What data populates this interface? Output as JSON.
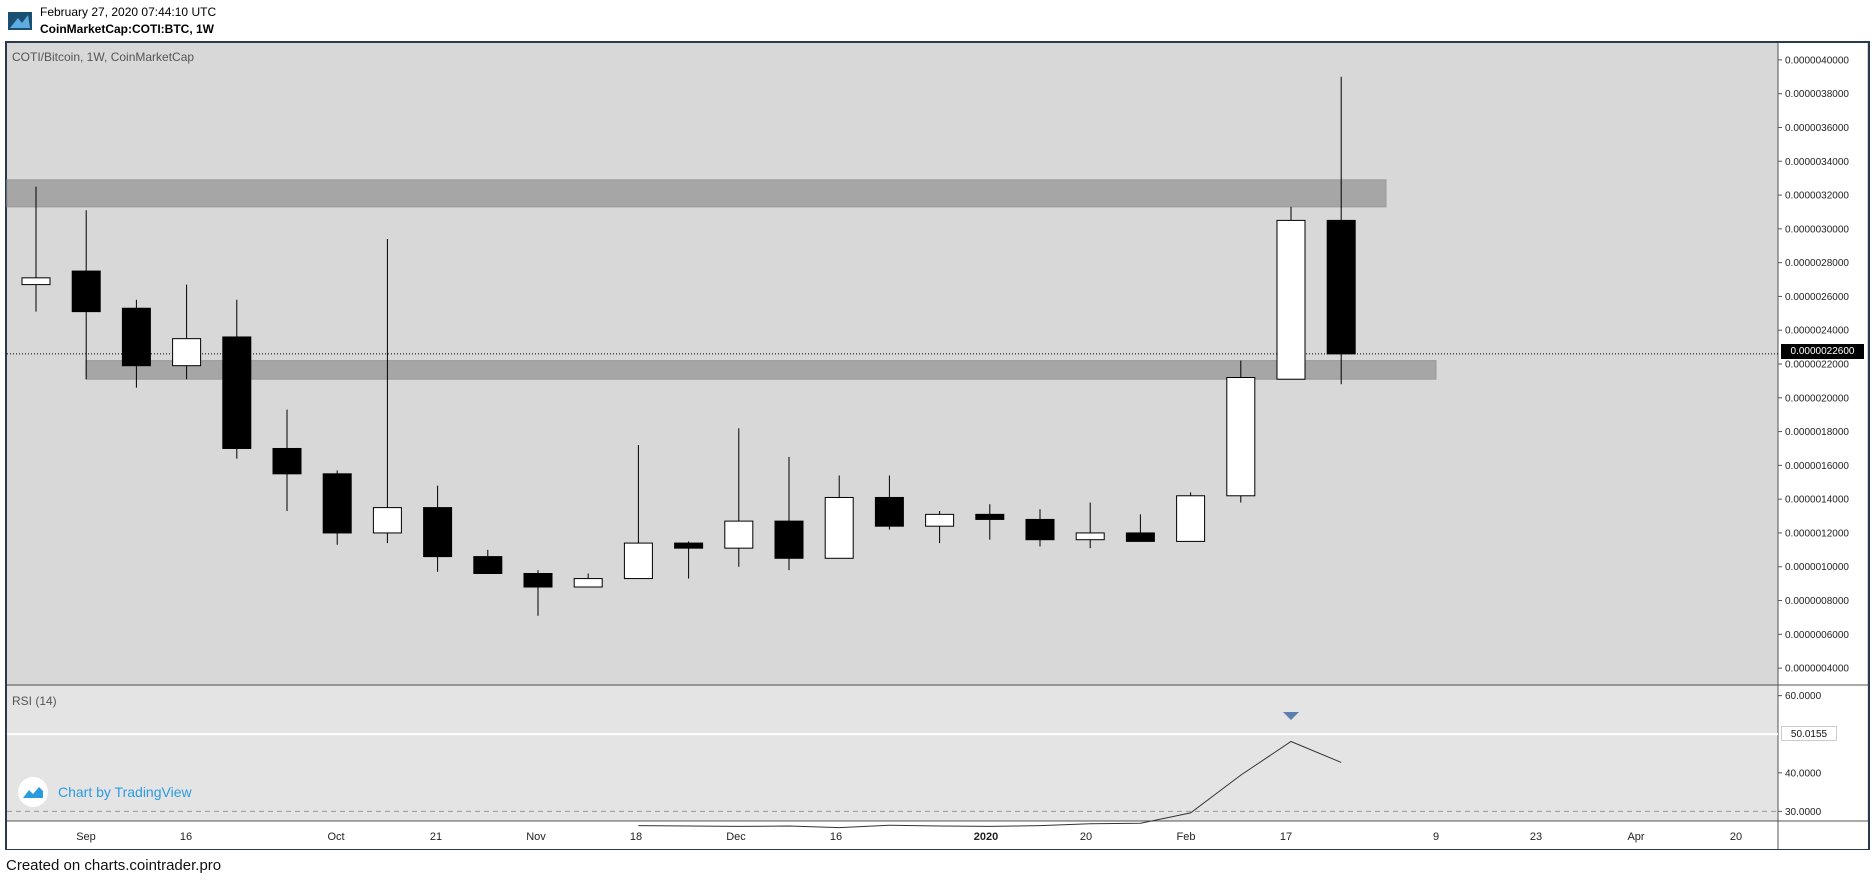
{
  "header": {
    "timestamp": "February 27, 2020 07:44:10 UTC",
    "symbol_line": "CoinMarketCap:COTI:BTC, 1W"
  },
  "pane": {
    "title": "COTI/Bitcoin, 1W, CoinMarketCap",
    "rsi_title": "RSI (14)"
  },
  "watermark": "Chart by TradingView",
  "footer": "Created on charts.cointrader.pro",
  "colors": {
    "background": "#d8d8d8",
    "rsi_background": "#e4e4e4",
    "zone": "#a6a6a6",
    "bull_body": "#ffffff",
    "bear_body": "#000000",
    "frame": "#2b3a4a",
    "watermark": "#2b9be0",
    "marker": "#5b7fae"
  },
  "chart_data": [
    {
      "type": "candlestick",
      "title": "COTI/Bitcoin, 1W, CoinMarketCap",
      "interval": "1W",
      "x_tick_labels": [
        "Sep",
        "16",
        "Oct",
        "21",
        "Nov",
        "18",
        "Dec",
        "16",
        "2020",
        "20",
        "Feb",
        "17",
        "9",
        "23",
        "Apr",
        "20"
      ],
      "y_tick_labels": [
        "0.0000040000",
        "0.0000038000",
        "0.0000036000",
        "0.0000034000",
        "0.0000032000",
        "0.0000030000",
        "0.0000028000",
        "0.0000026000",
        "0.0000024000",
        "0.0000022000",
        "0.0000020000",
        "0.0000018000",
        "0.0000016000",
        "0.0000014000",
        "0.0000012000",
        "0.0000010000",
        "0.0000008000",
        "0.0000006000",
        "0.0000004000"
      ],
      "ylim": [
        3e-07,
        4.1e-06
      ],
      "last_price_label": "0.0000022600",
      "last_price": 2.26e-06,
      "zones": [
        {
          "from": 3.13e-06,
          "to": 3.29e-06
        },
        {
          "from": 2.11e-06,
          "to": 2.22e-06
        }
      ],
      "candles": [
        {
          "o": 2.67e-06,
          "h": 3.25e-06,
          "l": 2.51e-06,
          "c": 2.71e-06
        },
        {
          "o": 2.75e-06,
          "h": 3.11e-06,
          "l": 2.11e-06,
          "c": 2.51e-06
        },
        {
          "o": 2.53e-06,
          "h": 2.58e-06,
          "l": 2.06e-06,
          "c": 2.19e-06
        },
        {
          "o": 2.19e-06,
          "h": 2.67e-06,
          "l": 2.11e-06,
          "c": 2.35e-06
        },
        {
          "o": 2.36e-06,
          "h": 2.58e-06,
          "l": 1.64e-06,
          "c": 1.7e-06
        },
        {
          "o": 1.7e-06,
          "h": 1.93e-06,
          "l": 1.33e-06,
          "c": 1.55e-06
        },
        {
          "o": 1.55e-06,
          "h": 1.57e-06,
          "l": 1.13e-06,
          "c": 1.2e-06
        },
        {
          "o": 1.2e-06,
          "h": 2.94e-06,
          "l": 1.14e-06,
          "c": 1.35e-06
        },
        {
          "o": 1.35e-06,
          "h": 1.48e-06,
          "l": 9.7e-07,
          "c": 1.06e-06
        },
        {
          "o": 1.06e-06,
          "h": 1.1e-06,
          "l": 9.6e-07,
          "c": 9.6e-07
        },
        {
          "o": 9.6e-07,
          "h": 9.8e-07,
          "l": 7.1e-07,
          "c": 8.8e-07
        },
        {
          "o": 8.8e-07,
          "h": 9.6e-07,
          "l": 8.8e-07,
          "c": 9.3e-07
        },
        {
          "o": 9.3e-07,
          "h": 1.72e-06,
          "l": 9.3e-07,
          "c": 1.14e-06
        },
        {
          "o": 1.14e-06,
          "h": 1.15e-06,
          "l": 9.3e-07,
          "c": 1.11e-06
        },
        {
          "o": 1.11e-06,
          "h": 1.82e-06,
          "l": 1e-06,
          "c": 1.27e-06
        },
        {
          "o": 1.27e-06,
          "h": 1.65e-06,
          "l": 9.8e-07,
          "c": 1.05e-06
        },
        {
          "o": 1.05e-06,
          "h": 1.54e-06,
          "l": 1.05e-06,
          "c": 1.41e-06
        },
        {
          "o": 1.41e-06,
          "h": 1.54e-06,
          "l": 1.22e-06,
          "c": 1.24e-06
        },
        {
          "o": 1.24e-06,
          "h": 1.33e-06,
          "l": 1.14e-06,
          "c": 1.31e-06
        },
        {
          "o": 1.31e-06,
          "h": 1.37e-06,
          "l": 1.16e-06,
          "c": 1.28e-06
        },
        {
          "o": 1.28e-06,
          "h": 1.34e-06,
          "l": 1.12e-06,
          "c": 1.16e-06
        },
        {
          "o": 1.16e-06,
          "h": 1.38e-06,
          "l": 1.11e-06,
          "c": 1.2e-06
        },
        {
          "o": 1.2e-06,
          "h": 1.31e-06,
          "l": 1.15e-06,
          "c": 1.15e-06
        },
        {
          "o": 1.15e-06,
          "h": 1.44e-06,
          "l": 1.15e-06,
          "c": 1.42e-06
        },
        {
          "o": 1.42e-06,
          "h": 2.22e-06,
          "l": 1.38e-06,
          "c": 2.12e-06
        },
        {
          "o": 2.11e-06,
          "h": 3.13e-06,
          "l": 2.11e-06,
          "c": 3.05e-06
        },
        {
          "o": 3.05e-06,
          "h": 3.9e-06,
          "l": 2.08e-06,
          "c": 2.26e-06
        }
      ]
    },
    {
      "type": "line",
      "title": "RSI (14)",
      "y_tick_labels": [
        "60.0000",
        "50.0155",
        "40.0000",
        "30.0000"
      ],
      "ylim": [
        27.5,
        62.5
      ],
      "last_value_label": "50.0155",
      "last_value": 50.0155,
      "reference_line": 30,
      "values": [
        26.3,
        26.2,
        26.1,
        26.2,
        25.8,
        26.4,
        26.2,
        26.1,
        26.3,
        26.8,
        26.9,
        29.6,
        39.4,
        48.1,
        42.7
      ]
    }
  ]
}
